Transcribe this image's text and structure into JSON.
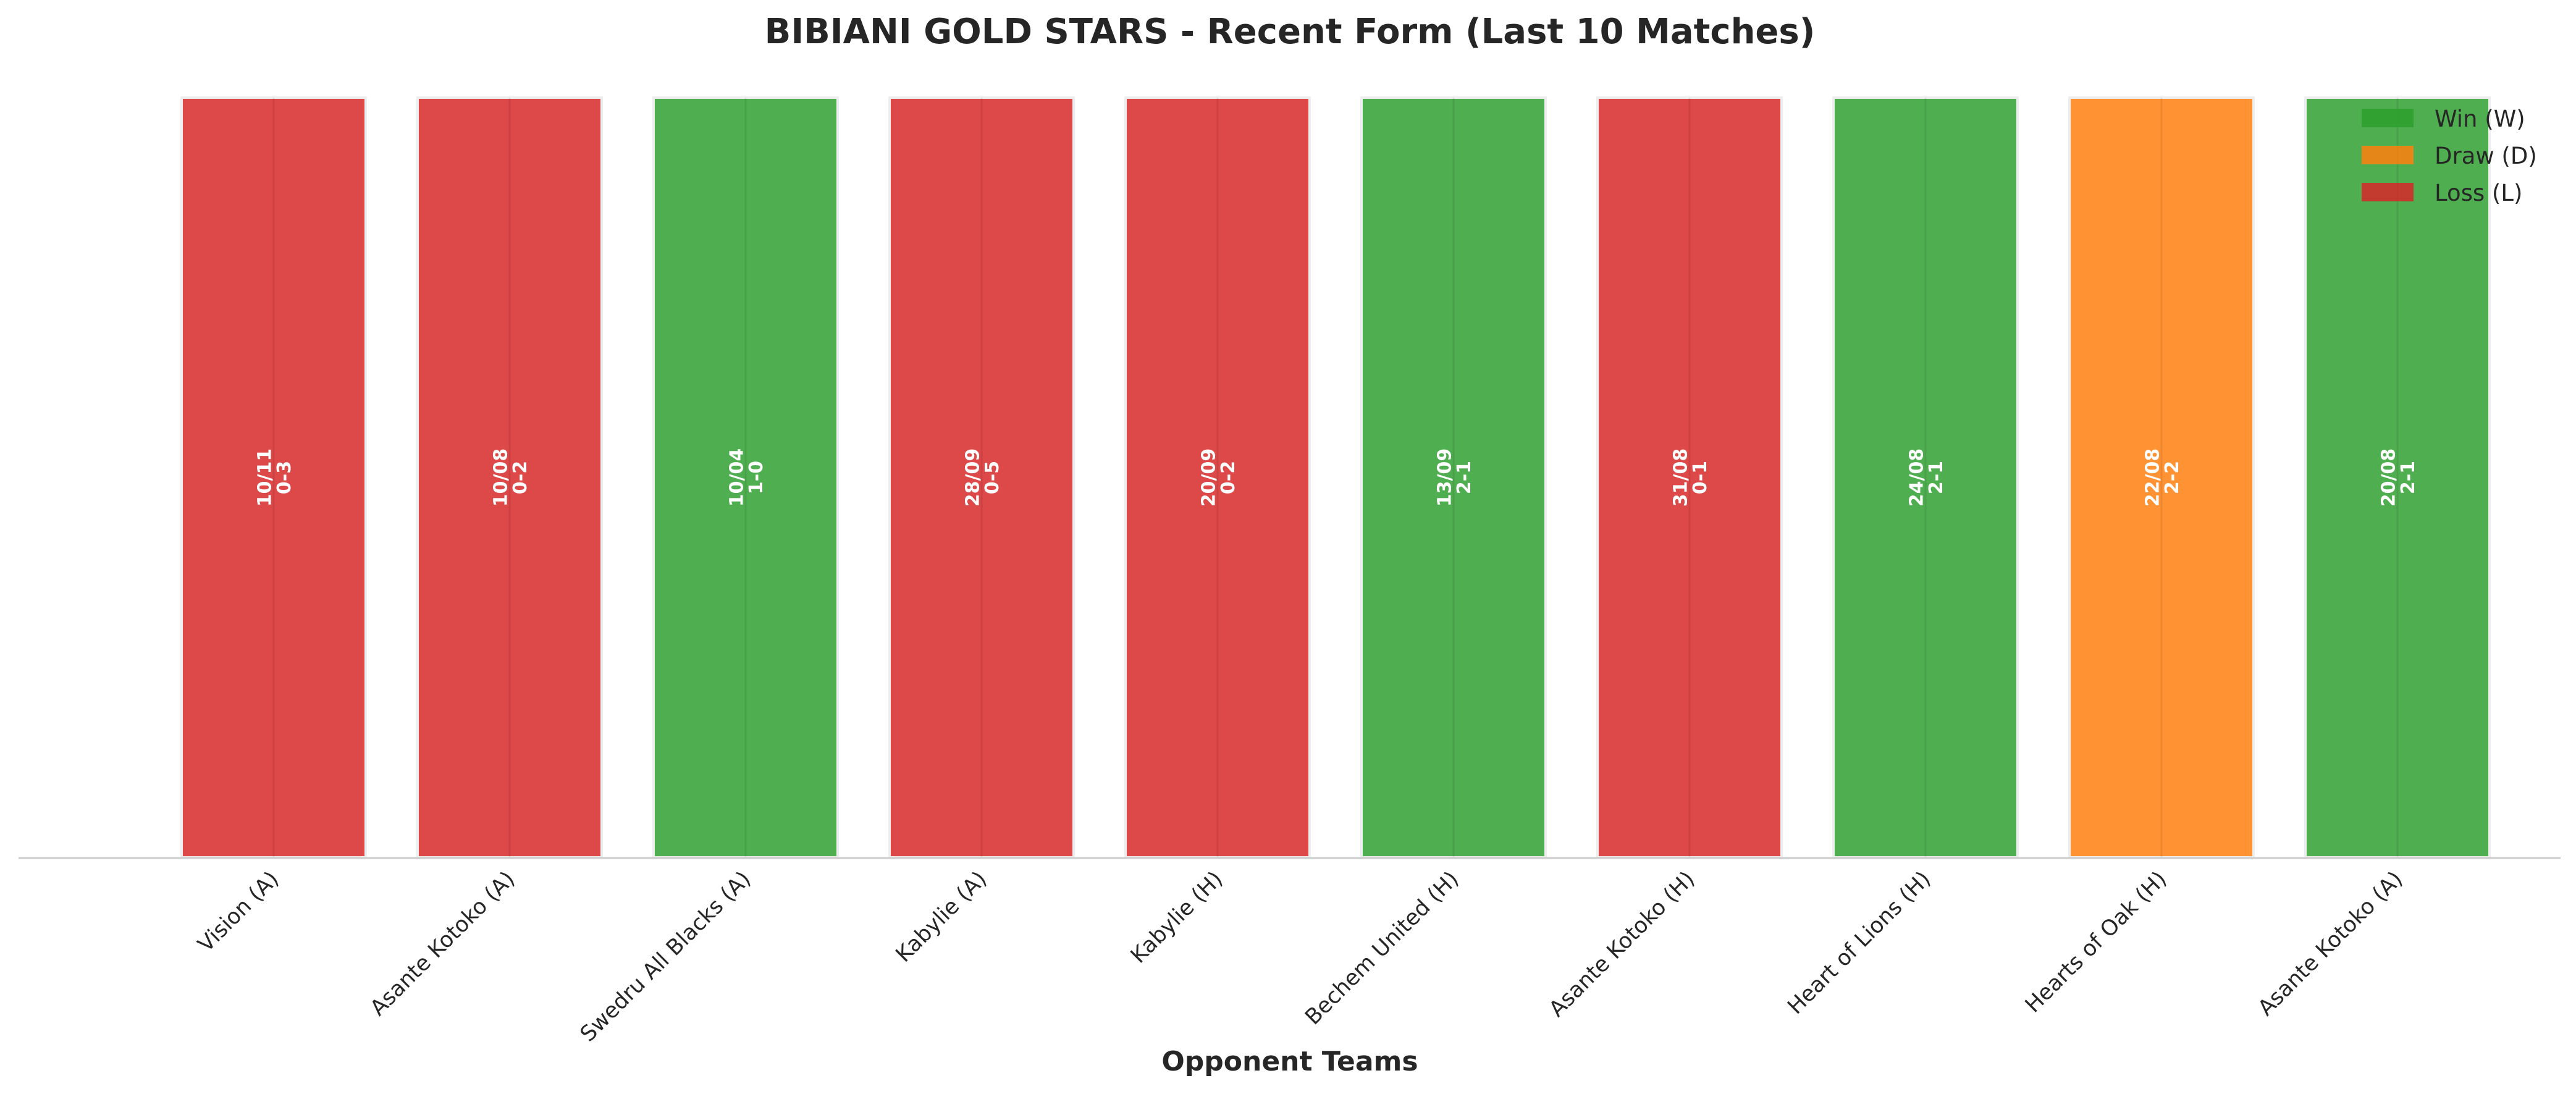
{
  "chart_data": {
    "type": "bar",
    "title": "BIBIANI GOLD STARS - Recent Form (Last 10 Matches)",
    "xlabel": "Opponent Teams",
    "ylabel": "",
    "grid": false,
    "legend_placement": "top-right",
    "categories": [
      "Vision (A)",
      "Asante Kotoko (A)",
      "Swedru All Blacks (A)",
      "Kabylie (A)",
      "Kabylie (H)",
      "Bechem United (H)",
      "Asante Kotoko (H)",
      "Heart of Lions (H)",
      "Hearts of Oak (H)",
      "Asante Kotoko (A)"
    ],
    "values": [
      1,
      1,
      1,
      1,
      1,
      1,
      1,
      1,
      1,
      1
    ],
    "results": [
      "L",
      "L",
      "W",
      "L",
      "L",
      "W",
      "L",
      "W",
      "D",
      "W"
    ],
    "dates": [
      "10/11",
      "10/08",
      "10/04",
      "28/09",
      "20/09",
      "13/09",
      "31/08",
      "24/08",
      "22/08",
      "20/08"
    ],
    "scores": [
      "0-3",
      "0-2",
      "1-0",
      "0-5",
      "0-2",
      "2-1",
      "0-1",
      "2-1",
      "2-2",
      "2-1"
    ],
    "legend": [
      {
        "key": "W",
        "label": "Win (W)",
        "color": "#2ca02c"
      },
      {
        "key": "D",
        "label": "Draw (D)",
        "color": "#ff7f0e"
      },
      {
        "key": "L",
        "label": "Loss (L)",
        "color": "#d62728"
      }
    ],
    "bar_colors": {
      "W": "#4fae4f",
      "D": "#ff9233",
      "L": "#dd4848"
    }
  }
}
